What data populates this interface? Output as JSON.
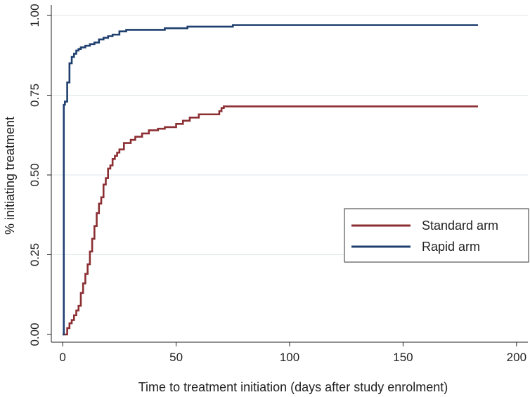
{
  "chart_data": {
    "type": "line",
    "title": "",
    "xlabel": "Time to treatment initiation (days after study enrolment)",
    "ylabel": "% initiating treatment",
    "xlim": [
      -5,
      205
    ],
    "ylim": [
      0,
      1
    ],
    "xticks": [
      0,
      50,
      100,
      150,
      200
    ],
    "xtick_labels": [
      "0",
      "50",
      "100",
      "150",
      "200"
    ],
    "yticks": [
      0,
      0.25,
      0.5,
      0.75,
      1.0
    ],
    "ytick_labels": [
      "0.00",
      "0.25",
      "0.50",
      "0.75",
      "1.00"
    ],
    "grid": "horizontal",
    "legend_position": "right",
    "series": [
      {
        "name": "Standard arm",
        "color": "#8b2f33",
        "step": true,
        "x": [
          0,
          2,
          3,
          4,
          5,
          6,
          7,
          8,
          9,
          10,
          11,
          12,
          13,
          14,
          15,
          16,
          17,
          18,
          19,
          20,
          21,
          22,
          23,
          24,
          25,
          27,
          30,
          32,
          35,
          38,
          42,
          45,
          50,
          53,
          56,
          60,
          65,
          69,
          70,
          71,
          183
        ],
        "y": [
          0,
          0.02,
          0.035,
          0.045,
          0.06,
          0.075,
          0.09,
          0.13,
          0.16,
          0.19,
          0.22,
          0.26,
          0.3,
          0.34,
          0.38,
          0.41,
          0.43,
          0.47,
          0.49,
          0.52,
          0.53,
          0.55,
          0.56,
          0.57,
          0.58,
          0.6,
          0.61,
          0.62,
          0.63,
          0.64,
          0.645,
          0.65,
          0.66,
          0.67,
          0.68,
          0.69,
          0.69,
          0.7,
          0.71,
          0.715,
          0.715
        ]
      },
      {
        "name": "Rapid arm",
        "color": "#1f3f6e",
        "step": true,
        "x": [
          0,
          0.5,
          1,
          2,
          3,
          4,
          5,
          6,
          7,
          8,
          10,
          12,
          14,
          16,
          18,
          20,
          22,
          25,
          28,
          35,
          45,
          55,
          75,
          183
        ],
        "y": [
          0,
          0.72,
          0.73,
          0.79,
          0.85,
          0.87,
          0.88,
          0.89,
          0.895,
          0.9,
          0.905,
          0.91,
          0.915,
          0.925,
          0.93,
          0.935,
          0.94,
          0.95,
          0.955,
          0.955,
          0.96,
          0.965,
          0.97,
          0.97
        ]
      }
    ]
  }
}
